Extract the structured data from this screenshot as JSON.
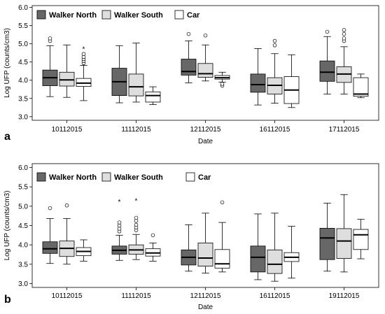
{
  "chart_data": [
    {
      "type": "box",
      "panel_label": "a",
      "xlabel": "Date",
      "ylabel": "Log UFP (counts/cm3)",
      "ylim": [
        2.9,
        6.05
      ],
      "yticks": [
        "3.0",
        "3.5",
        "4.0",
        "4.5",
        "5.0",
        "5.5",
        "6.0"
      ],
      "ytick_values": [
        3.0,
        3.5,
        4.0,
        4.5,
        5.0,
        5.5,
        6.0
      ],
      "categories": [
        "10112015",
        "11112015",
        "12112015",
        "16112015",
        "17112015"
      ],
      "legend": [
        "Walker North",
        "Walker South",
        "Car"
      ],
      "series_colors": [
        "#676767",
        "#dedede",
        "#ffffff"
      ],
      "series": [
        {
          "name": "Walker North",
          "boxes": [
            {
              "whislo": 3.55,
              "q1": 3.85,
              "med": 4.07,
              "q3": 4.28,
              "whishi": 4.95,
              "outliers": [
                5.08,
                5.15
              ],
              "extremes": []
            },
            {
              "whislo": 3.38,
              "q1": 3.58,
              "med": 3.96,
              "q3": 4.33,
              "whishi": 4.95,
              "outliers": [],
              "extremes": []
            },
            {
              "whislo": 3.93,
              "q1": 4.14,
              "med": 4.24,
              "q3": 4.58,
              "whishi": 5.08,
              "outliers": [
                5.27
              ],
              "extremes": []
            },
            {
              "whislo": 3.32,
              "q1": 3.67,
              "med": 3.88,
              "q3": 4.17,
              "whishi": 4.87,
              "outliers": [],
              "extremes": []
            },
            {
              "whislo": 3.62,
              "q1": 3.97,
              "med": 4.22,
              "q3": 4.53,
              "whishi": 5.2,
              "outliers": [
                5.33
              ],
              "extremes": []
            }
          ]
        },
        {
          "name": "Walker South",
          "boxes": [
            {
              "whislo": 3.53,
              "q1": 3.84,
              "med": 4.01,
              "q3": 4.22,
              "whishi": 4.97,
              "outliers": [],
              "extremes": []
            },
            {
              "whislo": 3.4,
              "q1": 3.57,
              "med": 3.82,
              "q3": 4.17,
              "whishi": 5.02,
              "outliers": [],
              "extremes": []
            },
            {
              "whislo": 3.98,
              "q1": 4.08,
              "med": 4.18,
              "q3": 4.46,
              "whishi": 4.97,
              "outliers": [
                5.23
              ],
              "extremes": []
            },
            {
              "whislo": 3.37,
              "q1": 3.62,
              "med": 3.86,
              "q3": 4.07,
              "whishi": 4.73,
              "outliers": [
                4.96,
                5.08
              ],
              "extremes": []
            },
            {
              "whislo": 3.62,
              "q1": 3.94,
              "med": 4.17,
              "q3": 4.37,
              "whishi": 4.92,
              "outliers": [
                5.08,
                5.15,
                5.27,
                5.38
              ],
              "extremes": []
            }
          ]
        },
        {
          "name": "Car",
          "boxes": [
            {
              "whislo": 3.44,
              "q1": 3.83,
              "med": 3.92,
              "q3": 4.05,
              "whishi": 4.41,
              "outliers": [
                4.47,
                4.53,
                4.58,
                4.64,
                4.72
              ],
              "extremes": [
                4.87
              ]
            },
            {
              "whislo": 3.33,
              "q1": 3.4,
              "med": 3.58,
              "q3": 3.68,
              "whishi": 3.82,
              "outliers": [],
              "extremes": []
            },
            {
              "whislo": 3.95,
              "q1": 4.03,
              "med": 4.07,
              "q3": 4.13,
              "whishi": 4.22,
              "outliers": [
                3.85,
                3.9
              ],
              "extremes": []
            },
            {
              "whislo": 3.25,
              "q1": 3.36,
              "med": 3.73,
              "q3": 4.1,
              "whishi": 4.7,
              "outliers": [],
              "extremes": []
            },
            {
              "whislo": 3.52,
              "q1": 3.56,
              "med": 3.62,
              "q3": 4.07,
              "whishi": 4.17,
              "outliers": [],
              "extremes": []
            }
          ]
        }
      ]
    },
    {
      "type": "box",
      "panel_label": "b",
      "xlabel": "Date",
      "ylabel": "Log UFP (counts/cm3)",
      "ylim": [
        2.9,
        6.1
      ],
      "yticks": [
        "3.0",
        "3.5",
        "4.0",
        "4.5",
        "5.0",
        "5.5",
        "6.0"
      ],
      "ytick_values": [
        3.0,
        3.5,
        4.0,
        4.5,
        5.0,
        5.5,
        6.0
      ],
      "categories": [
        "10112015",
        "11112015",
        "12112015",
        "16112015",
        "19112015"
      ],
      "legend": [
        "Walker North",
        "Walker South",
        "Car"
      ],
      "series_colors": [
        "#676767",
        "#dedede",
        "#ffffff"
      ],
      "series": [
        {
          "name": "Walker North",
          "boxes": [
            {
              "whislo": 3.52,
              "q1": 3.78,
              "med": 3.9,
              "q3": 4.08,
              "whishi": 4.68,
              "outliers": [
                4.95
              ],
              "extremes": []
            },
            {
              "whislo": 3.6,
              "q1": 3.76,
              "med": 3.86,
              "q3": 3.97,
              "whishi": 4.25,
              "outliers": [
                4.35,
                4.42,
                4.5,
                4.58
              ],
              "extremes": [
                5.12
              ]
            },
            {
              "whislo": 3.32,
              "q1": 3.48,
              "med": 3.68,
              "q3": 3.87,
              "whishi": 4.52,
              "outliers": [],
              "extremes": []
            },
            {
              "whislo": 3.1,
              "q1": 3.3,
              "med": 3.68,
              "q3": 3.97,
              "whishi": 4.8,
              "outliers": [],
              "extremes": []
            },
            {
              "whislo": 3.32,
              "q1": 3.62,
              "med": 4.18,
              "q3": 4.43,
              "whishi": 5.08,
              "outliers": [],
              "extremes": []
            }
          ]
        },
        {
          "name": "Walker South",
          "boxes": [
            {
              "whislo": 3.5,
              "q1": 3.7,
              "med": 3.91,
              "q3": 4.1,
              "whishi": 4.68,
              "outliers": [
                5.02
              ],
              "extremes": []
            },
            {
              "whislo": 3.62,
              "q1": 3.76,
              "med": 3.87,
              "q3": 4.0,
              "whishi": 4.27,
              "outliers": [
                4.38,
                4.45,
                4.52,
                4.62,
                4.7
              ],
              "extremes": [
                5.15
              ]
            },
            {
              "whislo": 3.27,
              "q1": 3.45,
              "med": 3.66,
              "q3": 4.05,
              "whishi": 4.82,
              "outliers": [],
              "extremes": []
            },
            {
              "whislo": 3.06,
              "q1": 3.26,
              "med": 3.5,
              "q3": 3.87,
              "whishi": 4.82,
              "outliers": [],
              "extremes": []
            },
            {
              "whislo": 3.3,
              "q1": 3.65,
              "med": 4.1,
              "q3": 4.42,
              "whishi": 5.3,
              "outliers": [],
              "extremes": []
            }
          ]
        },
        {
          "name": "Car",
          "boxes": [
            {
              "whislo": 3.58,
              "q1": 3.72,
              "med": 3.83,
              "q3": 3.93,
              "whishi": 4.13,
              "outliers": [],
              "extremes": []
            },
            {
              "whislo": 3.58,
              "q1": 3.71,
              "med": 3.79,
              "q3": 3.9,
              "whishi": 4.05,
              "outliers": [
                4.25
              ],
              "extremes": []
            },
            {
              "whislo": 3.3,
              "q1": 3.4,
              "med": 3.51,
              "q3": 3.88,
              "whishi": 4.58,
              "outliers": [
                5.1
              ],
              "extremes": []
            },
            {
              "whislo": 3.14,
              "q1": 3.57,
              "med": 3.68,
              "q3": 3.8,
              "whishi": 4.48,
              "outliers": [],
              "extremes": []
            },
            {
              "whislo": 3.64,
              "q1": 3.88,
              "med": 4.26,
              "q3": 4.4,
              "whishi": 4.66,
              "outliers": [],
              "extremes": []
            }
          ]
        }
      ]
    }
  ]
}
